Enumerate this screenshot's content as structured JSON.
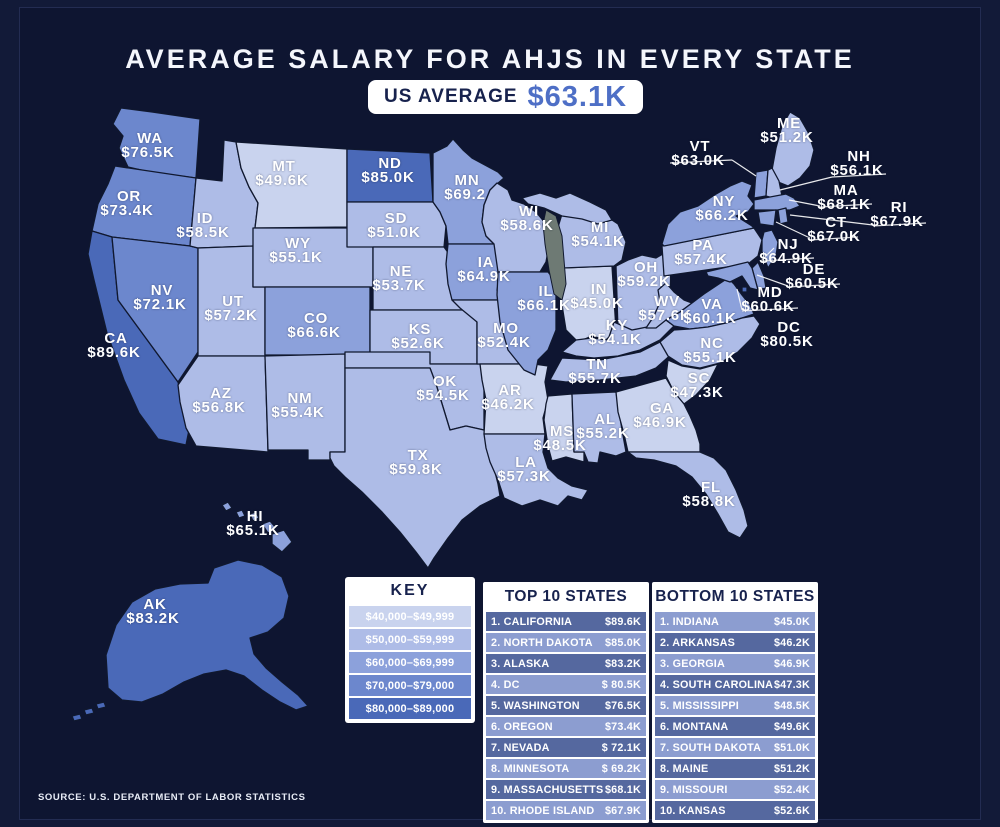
{
  "title": "AVERAGE SALARY FOR AHJS IN EVERY STATE",
  "us_average": {
    "label": "US AVERAGE",
    "value": "$63.1K"
  },
  "source": "SOURCE: U.S. DEPARTMENT OF LABOR STATISTICS",
  "colors": {
    "background": "#0e1531",
    "tier1": "#c9d3ee",
    "tier2": "#aebce7",
    "tier3": "#8ca1db",
    "tier4": "#6c87cd",
    "tier5": "#4a69b8",
    "accent_blue": "#4e6fc6",
    "navy_text": "#17224d",
    "lake": "#6e7a74",
    "table_row_dark": "#55689f",
    "table_row_light": "#8c9dd0"
  },
  "key": {
    "title": "KEY",
    "rows": [
      {
        "range": "$40,000–$49,999",
        "color": "#c9d3ee"
      },
      {
        "range": "$50,000–$59,999",
        "color": "#aebce7"
      },
      {
        "range": "$60,000–$69,999",
        "color": "#8ca1db"
      },
      {
        "range": "$70,000–$79,000",
        "color": "#6c87cd"
      },
      {
        "range": "$80,000–$89,000",
        "color": "#4a69b8"
      }
    ]
  },
  "states": {
    "WA": {
      "abbr": "WA",
      "value": "$76.5K",
      "tier": 4
    },
    "OR": {
      "abbr": "OR",
      "value": "$73.4K",
      "tier": 4
    },
    "CA": {
      "abbr": "CA",
      "value": "$89.6K",
      "tier": 5
    },
    "NV": {
      "abbr": "NV",
      "value": "$72.1K",
      "tier": 4
    },
    "ID": {
      "abbr": "ID",
      "value": "$58.5K",
      "tier": 2
    },
    "MT": {
      "abbr": "MT",
      "value": "$49.6K",
      "tier": 1
    },
    "WY": {
      "abbr": "WY",
      "value": "$55.1K",
      "tier": 2
    },
    "UT": {
      "abbr": "UT",
      "value": "$57.2K",
      "tier": 2
    },
    "CO": {
      "abbr": "CO",
      "value": "$66.6K",
      "tier": 3
    },
    "AZ": {
      "abbr": "AZ",
      "value": "$56.8K",
      "tier": 2
    },
    "NM": {
      "abbr": "NM",
      "value": "$55.4K",
      "tier": 2
    },
    "ND": {
      "abbr": "ND",
      "value": "$85.0K",
      "tier": 5
    },
    "SD": {
      "abbr": "SD",
      "value": "$51.0K",
      "tier": 2
    },
    "NE": {
      "abbr": "NE",
      "value": "$53.7K",
      "tier": 2
    },
    "KS": {
      "abbr": "KS",
      "value": "$52.6K",
      "tier": 2
    },
    "OK": {
      "abbr": "OK",
      "value": "$54.5K",
      "tier": 2
    },
    "TX": {
      "abbr": "TX",
      "value": "$59.8K",
      "tier": 2
    },
    "MN": {
      "abbr": "MN",
      "value": "$69.2",
      "tier": 3
    },
    "IA": {
      "abbr": "IA",
      "value": "$64.9K",
      "tier": 3
    },
    "MO": {
      "abbr": "MO",
      "value": "$52.4K",
      "tier": 2
    },
    "AR": {
      "abbr": "AR",
      "value": "$46.2K",
      "tier": 1
    },
    "LA": {
      "abbr": "LA",
      "value": "$57.3K",
      "tier": 2
    },
    "WI": {
      "abbr": "WI",
      "value": "$58.6K",
      "tier": 2
    },
    "IL": {
      "abbr": "IL",
      "value": "$66.1K",
      "tier": 3
    },
    "IN": {
      "abbr": "IN",
      "value": "$45.0K",
      "tier": 1
    },
    "MI": {
      "abbr": "MI",
      "value": "$54.1K",
      "tier": 2
    },
    "OH": {
      "abbr": "OH",
      "value": "$59.2K",
      "tier": 2
    },
    "KY": {
      "abbr": "KY",
      "value": "$54.1K",
      "tier": 2
    },
    "TN": {
      "abbr": "TN",
      "value": "$55.7K",
      "tier": 2
    },
    "MS": {
      "abbr": "MS",
      "value": "$48.5K",
      "tier": 1
    },
    "AL": {
      "abbr": "AL",
      "value": "$55.2K",
      "tier": 2
    },
    "WV": {
      "abbr": "WV",
      "value": "$57.6K",
      "tier": 2
    },
    "VA": {
      "abbr": "VA",
      "value": "$60.1K",
      "tier": 3
    },
    "NC": {
      "abbr": "NC",
      "value": "$55.1K",
      "tier": 2
    },
    "SC": {
      "abbr": "SC",
      "value": "$47.3K",
      "tier": 1
    },
    "GA": {
      "abbr": "GA",
      "value": "$46.9K",
      "tier": 1
    },
    "FL": {
      "abbr": "FL",
      "value": "$58.8K",
      "tier": 2
    },
    "PA": {
      "abbr": "PA",
      "value": "$57.4K",
      "tier": 2
    },
    "NY": {
      "abbr": "NY",
      "value": "$66.2K",
      "tier": 3
    },
    "ME": {
      "abbr": "ME",
      "value": "$51.2K",
      "tier": 2
    },
    "VT": {
      "abbr": "VT",
      "value": "$63.0K",
      "tier": 3
    },
    "NH": {
      "abbr": "NH",
      "value": "$56.1K",
      "tier": 2
    },
    "MA": {
      "abbr": "MA",
      "value": "$68.1K",
      "tier": 3
    },
    "RI": {
      "abbr": "RI",
      "value": "$67.9K",
      "tier": 3
    },
    "CT": {
      "abbr": "CT",
      "value": "$67.0K",
      "tier": 3
    },
    "NJ": {
      "abbr": "NJ",
      "value": "$64.9K",
      "tier": 3
    },
    "DE": {
      "abbr": "DE",
      "value": "$60.5K",
      "tier": 3
    },
    "MD": {
      "abbr": "MD",
      "value": "$60.6K",
      "tier": 3
    },
    "DC": {
      "abbr": "DC",
      "value": "$80.5K",
      "tier": 5
    },
    "HI": {
      "abbr": "HI",
      "value": "$65.1K",
      "tier": 3
    },
    "AK": {
      "abbr": "AK",
      "value": "$83.2K",
      "tier": 5
    }
  },
  "tables": {
    "top10": {
      "header": "TOP 10 STATES",
      "rows": [
        {
          "name": "1. CALIFORNIA",
          "value": "$89.6K"
        },
        {
          "name": "2. NORTH DAKOTA",
          "value": "$85.0K"
        },
        {
          "name": "3. ALASKA",
          "value": "$83.2K"
        },
        {
          "name": "4. DC",
          "value": "$ 80.5K"
        },
        {
          "name": "5. WASHINGTON",
          "value": "$76.5K"
        },
        {
          "name": "6. OREGON",
          "value": "$73.4K"
        },
        {
          "name": "7. NEVADA",
          "value": "$ 72.1K"
        },
        {
          "name": "8. MINNESOTA",
          "value": "$ 69.2K"
        },
        {
          "name": "9. MASSACHUSETTS",
          "value": "$68.1K"
        },
        {
          "name": "10. RHODE ISLAND",
          "value": "$67.9K"
        }
      ]
    },
    "bottom10": {
      "header": "BOTTOM 10 STATES",
      "rows": [
        {
          "name": "1. INDIANA",
          "value": "$45.0K"
        },
        {
          "name": "2. ARKANSAS",
          "value": "$46.2K"
        },
        {
          "name": "3. GEORGIA",
          "value": "$46.9K"
        },
        {
          "name": "4. SOUTH CAROLINA",
          "value": "$47.3K"
        },
        {
          "name": "5. MISSISSIPPI",
          "value": "$48.5K"
        },
        {
          "name": "6. MONTANA",
          "value": "$49.6K"
        },
        {
          "name": "7. SOUTH DAKOTA",
          "value": "$51.0K"
        },
        {
          "name": "8. MAINE",
          "value": "$51.2K"
        },
        {
          "name": "9. MISSOURI",
          "value": "$52.4K"
        },
        {
          "name": "10. KANSAS",
          "value": "$52.6K"
        }
      ]
    }
  },
  "chart_data": {
    "type": "heatmap",
    "subtype": "us-choropleth-map",
    "title": "AVERAGE SALARY FOR AHJS IN EVERY STATE",
    "unit": "USD thousands",
    "us_average": 63.1,
    "legend_position": "bottom-left",
    "legend": [
      "$40,000–$49,999",
      "$50,000–$59,999",
      "$60,000–$69,999",
      "$70,000–$79,000",
      "$80,000–$89,000"
    ],
    "categories": [
      "WA",
      "OR",
      "CA",
      "NV",
      "ID",
      "MT",
      "WY",
      "UT",
      "CO",
      "AZ",
      "NM",
      "ND",
      "SD",
      "NE",
      "KS",
      "OK",
      "TX",
      "MN",
      "IA",
      "MO",
      "AR",
      "LA",
      "WI",
      "IL",
      "IN",
      "MI",
      "OH",
      "KY",
      "TN",
      "MS",
      "AL",
      "WV",
      "VA",
      "NC",
      "SC",
      "GA",
      "FL",
      "PA",
      "NY",
      "ME",
      "VT",
      "NH",
      "MA",
      "RI",
      "CT",
      "NJ",
      "DE",
      "MD",
      "DC",
      "HI",
      "AK"
    ],
    "values": [
      76.5,
      73.4,
      89.6,
      72.1,
      58.5,
      49.6,
      55.1,
      57.2,
      66.6,
      56.8,
      55.4,
      85.0,
      51.0,
      53.7,
      52.6,
      54.5,
      59.8,
      69.2,
      64.9,
      52.4,
      46.2,
      57.3,
      58.6,
      66.1,
      45.0,
      54.1,
      59.2,
      54.1,
      55.7,
      48.5,
      55.2,
      57.6,
      60.1,
      55.1,
      47.3,
      46.9,
      58.8,
      57.4,
      66.2,
      51.2,
      63.0,
      56.1,
      68.1,
      67.9,
      67.0,
      64.9,
      60.5,
      60.6,
      80.5,
      65.1,
      83.2
    ]
  }
}
